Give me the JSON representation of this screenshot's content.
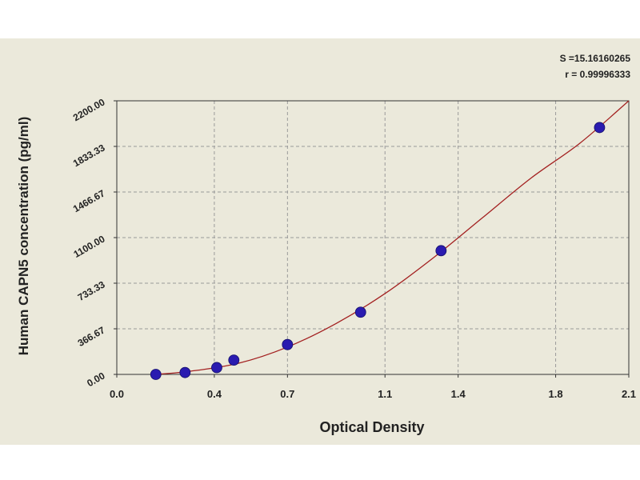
{
  "chart_data": {
    "type": "scatter",
    "xlabel": "Optical Density",
    "ylabel": "Human CAPN5 concentration (pg/ml)",
    "xlim": [
      0,
      2.1
    ],
    "ylim": [
      0,
      2200
    ],
    "x_ticks": [
      "0.0",
      "0.4",
      "0.7",
      "1.1",
      "1.4",
      "1.8",
      "2.1"
    ],
    "y_ticks": [
      "0.00",
      "366.67",
      "733.33",
      "1100.00",
      "1466.67",
      "1833.33",
      "2200.00"
    ],
    "grid": true,
    "stats": {
      "s": "S =15.16160265",
      "r": "r = 0.99996333"
    },
    "points": [
      {
        "x": 0.16,
        "y": 0
      },
      {
        "x": 0.28,
        "y": 15
      },
      {
        "x": 0.41,
        "y": 55
      },
      {
        "x": 0.48,
        "y": 115
      },
      {
        "x": 0.7,
        "y": 240
      },
      {
        "x": 1.0,
        "y": 500
      },
      {
        "x": 1.33,
        "y": 995
      },
      {
        "x": 1.98,
        "y": 1985
      }
    ],
    "fit_curve": [
      [
        0.16,
        0
      ],
      [
        0.3,
        25
      ],
      [
        0.5,
        90
      ],
      [
        0.7,
        220
      ],
      [
        0.9,
        410
      ],
      [
        1.1,
        650
      ],
      [
        1.3,
        940
      ],
      [
        1.5,
        1260
      ],
      [
        1.7,
        1580
      ],
      [
        1.9,
        1860
      ],
      [
        2.1,
        2200
      ]
    ],
    "colors": {
      "point": "#2a1bb0",
      "curve": "#a32020",
      "grid": "#9a9a9a",
      "background": "#ebe9db"
    }
  }
}
